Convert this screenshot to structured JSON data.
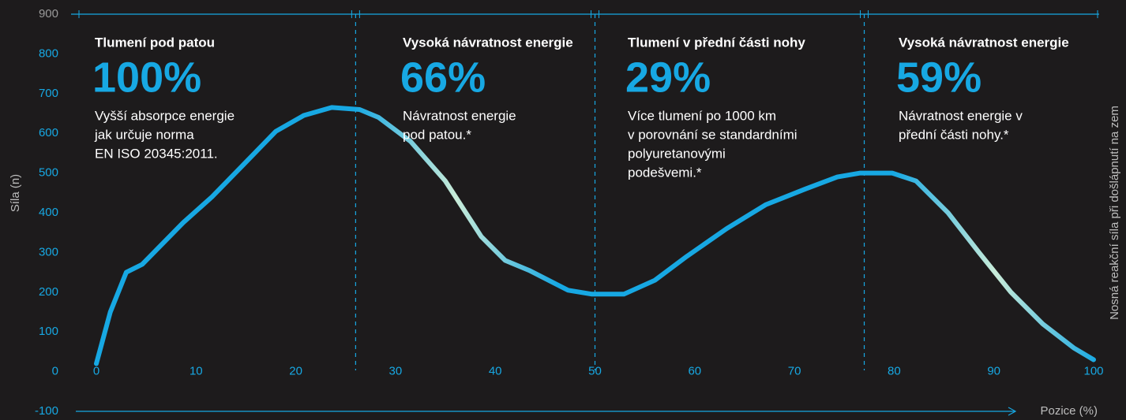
{
  "chart_data": {
    "type": "line",
    "y_label": "Síla (n)",
    "y2_label": "Nosná reakční síla při došlápnutí na zem",
    "x_label": "Pozice (%)",
    "xlim": [
      0,
      100
    ],
    "xticks": [
      0,
      10,
      20,
      30,
      40,
      50,
      60,
      70,
      80,
      90,
      100
    ],
    "ylim": [
      -100,
      900
    ],
    "yticks": [
      -100,
      0,
      100,
      200,
      300,
      400,
      500,
      600,
      700,
      800,
      900
    ],
    "series": [
      {
        "color": "#17a8e3",
        "x": [
          0,
          1.4,
          3,
          4.6,
          8.7,
          11.6,
          14.9,
          18,
          20.8,
          23.6,
          26.4,
          28.3,
          31.5,
          35,
          38.6,
          41,
          43.4,
          47.3,
          49.7,
          52.9,
          56,
          59.2,
          63.2,
          67.1,
          71.1,
          74.3,
          76.6,
          79.8,
          82.2,
          85.4,
          88.5,
          91.7,
          94.9,
          98,
          100
        ],
        "values": [
          20,
          150,
          250,
          270,
          375,
          440,
          525,
          605,
          645,
          665,
          660,
          640,
          580,
          480,
          340,
          280,
          255,
          205,
          195,
          195,
          230,
          290,
          360,
          420,
          460,
          490,
          500,
          500,
          480,
          400,
          300,
          200,
          120,
          60,
          30
        ]
      }
    ],
    "dividers": [
      26,
      50,
      77
    ],
    "annotations": [
      {
        "title": "Tlumení pod patou",
        "value": "100%",
        "lines": [
          "Vyšší absorpce energie",
          "jak určuje norma",
          "EN ISO 20345:2011."
        ]
      },
      {
        "title": "Vysoká návratnost energie",
        "value": "66%",
        "lines": [
          "Návratnost energie",
          "pod patou.*"
        ]
      },
      {
        "title": "Tlumení v přední části nohy",
        "value": "29%",
        "lines": [
          "Více tlumení po 1000 km",
          "v porovnání se standardními",
          "polyuretanovými",
          "podešvemi.*"
        ]
      },
      {
        "title": "Vysoká návratnost energie",
        "value": "59%",
        "lines": [
          "Návratnost energie v",
          "přední části nohy.*"
        ]
      }
    ]
  }
}
